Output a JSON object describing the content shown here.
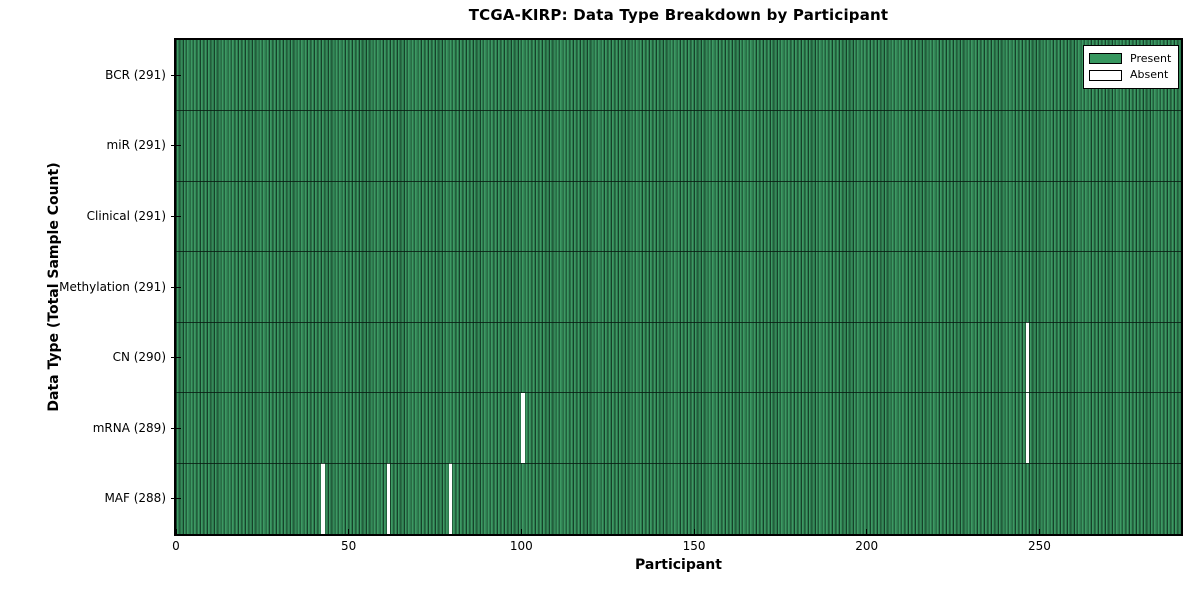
{
  "chart_data": {
    "type": "heatmap",
    "title": "TCGA-KIRP: Data Type Breakdown by Participant",
    "xlabel": "Participant",
    "ylabel": "Data Type (Total Sample Count)",
    "x_range": [
      0,
      291
    ],
    "n_participants": 291,
    "x_ticks": [
      0,
      50,
      100,
      150,
      200,
      250
    ],
    "grid": false,
    "legend_position": "upper right",
    "rows": [
      {
        "label": "BCR (291)",
        "name": "BCR",
        "present_count": 291,
        "absent_participants": []
      },
      {
        "label": "miR (291)",
        "name": "miR",
        "present_count": 291,
        "absent_participants": []
      },
      {
        "label": "Clinical (291)",
        "name": "Clinical",
        "present_count": 291,
        "absent_participants": []
      },
      {
        "label": "Methylation (291)",
        "name": "Methylation",
        "present_count": 291,
        "absent_participants": []
      },
      {
        "label": "CN (290)",
        "name": "CN",
        "present_count": 290,
        "absent_participants": [
          246
        ]
      },
      {
        "label": "mRNA (289)",
        "name": "mRNA",
        "present_count": 289,
        "absent_participants": [
          100,
          246
        ]
      },
      {
        "label": "MAF (288)",
        "name": "MAF",
        "present_count": 288,
        "absent_participants": [
          42,
          61,
          79
        ]
      }
    ],
    "legend": [
      {
        "label": "Present",
        "color": "#37975F"
      },
      {
        "label": "Absent",
        "color": "#FFFFFF"
      }
    ],
    "colors": {
      "present": "#37975F",
      "absent": "#FFFFFF",
      "bar_face_light": "#3D9963",
      "bar_face_shade": "#2D7A4F",
      "bar_edge": "#16422A",
      "frame": "#000000",
      "background": "#FFFFFF"
    }
  }
}
